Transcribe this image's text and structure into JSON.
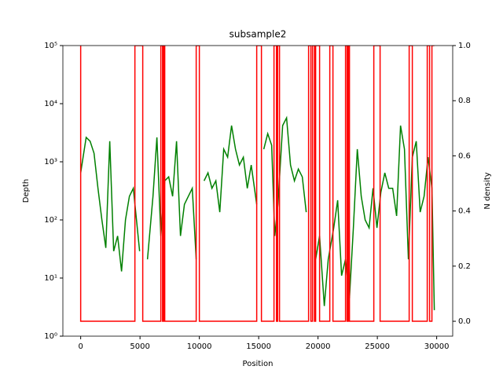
{
  "chart_data": {
    "type": "line",
    "title": "subsample2",
    "x_label": "Position",
    "y_label": "Depth",
    "y2_label": "N density",
    "xlim": [
      -1500,
      31350
    ],
    "xticks": [
      0,
      5000,
      10000,
      15000,
      20000,
      25000,
      30000
    ],
    "ylim": [
      1,
      100000
    ],
    "y_scale": "log",
    "yticks": [
      {
        "value": 1,
        "label": "10⁰"
      },
      {
        "value": 10,
        "label": "10¹"
      },
      {
        "value": 100,
        "label": "10²"
      },
      {
        "value": 1000,
        "label": "10³"
      },
      {
        "value": 10000,
        "label": "10⁴"
      },
      {
        "value": 100000,
        "label": "10⁵"
      }
    ],
    "y2lim": [
      -0.054,
      1.0
    ],
    "y2ticks": [
      {
        "value": 0,
        "label": "0.0"
      },
      0.2,
      0.4,
      0.6,
      0.8,
      {
        "value": 1,
        "label": "1.0"
      }
    ],
    "series": [
      {
        "color": "#008000",
        "x": [
          0,
          463,
          795,
          1126,
          1457,
          1788,
          2119,
          2450,
          2781,
          3113,
          3444,
          3775,
          4106,
          4437,
          4967,
          5230,
          5629,
          6093,
          6424,
          6755,
          7085,
          7417,
          7748,
          8079,
          8410,
          8742,
          9073,
          9404,
          9735,
          10000,
          10397,
          10728,
          11060,
          11391,
          11722,
          12053,
          12384,
          12715,
          13046,
          13377,
          13709,
          14040,
          14371,
          14834,
          15100,
          15430,
          15762,
          16093,
          16358,
          16623,
          17020,
          17351,
          17682,
          18013,
          18344,
          18675,
          19007,
          19400,
          19801,
          20132,
          20530,
          20861,
          21325,
          21656,
          21987,
          22318,
          22649,
          22980,
          23311,
          23642,
          23973,
          24305,
          24636,
          24967,
          25298,
          25629,
          25960,
          26291,
          26623,
          26954,
          27285,
          27616,
          27947,
          28278,
          28609,
          28940,
          29272,
          29603,
          29801
        ],
        "values": [
          646,
          2630,
          2260,
          1400,
          350,
          100,
          33,
          2260,
          29,
          53,
          13,
          100,
          255,
          350,
          29,
          null,
          21,
          255,
          2630,
          53,
          470,
          550,
          255,
          2260,
          53,
          185,
          255,
          350,
          21,
          null,
          470,
          646,
          350,
          470,
          136,
          1650,
          1200,
          4200,
          1650,
          880,
          1200,
          350,
          880,
          185,
          null,
          1650,
          3050,
          1930,
          53,
          185,
          4200,
          5700,
          880,
          470,
          750,
          550,
          136,
          null,
          21,
          53,
          3.3,
          21,
          73,
          218,
          11,
          21,
          4.5,
          73,
          1650,
          255,
          100,
          73,
          350,
          73,
          300,
          646,
          350,
          350,
          117,
          4200,
          1650,
          21,
          1200,
          2260,
          136,
          255,
          1200,
          350,
          2.8
        ]
      },
      {
        "color": "#ff0000",
        "axis": "y2",
        "x": [
          0,
          0,
          4570,
          4570,
          5230,
          5230,
          6755,
          6755,
          6900,
          6900,
          7000,
          7000,
          7085,
          7085,
          9735,
          9735,
          10000,
          10000,
          14834,
          14834,
          15232,
          15232,
          16290,
          16290,
          16500,
          16500,
          16600,
          16600,
          16755,
          16755,
          19205,
          19205,
          19400,
          19400,
          19536,
          19536,
          19700,
          19700,
          19800,
          19800,
          20132,
          20132,
          20993,
          20993,
          21258,
          21258,
          22318,
          22318,
          22450,
          22450,
          22550,
          22550,
          22650,
          22650,
          24702,
          24702,
          25232,
          25232,
          27682,
          27682,
          27947,
          27947,
          29205,
          29205,
          29400,
          29400,
          29600,
          29600,
          29800
        ],
        "values": [
          1,
          0,
          0,
          1,
          1,
          0,
          0,
          1,
          1,
          0,
          0,
          1,
          1,
          0,
          0,
          1,
          1,
          0,
          0,
          1,
          1,
          0,
          0,
          1,
          1,
          0,
          0,
          1,
          1,
          0,
          0,
          1,
          1,
          0,
          0,
          1,
          1,
          0,
          0,
          1,
          1,
          0,
          0,
          1,
          1,
          0,
          0,
          1,
          1,
          0,
          0,
          1,
          1,
          0,
          0,
          1,
          1,
          0,
          0,
          1,
          1,
          0,
          0,
          1,
          1,
          0,
          0,
          1,
          1
        ]
      }
    ]
  }
}
